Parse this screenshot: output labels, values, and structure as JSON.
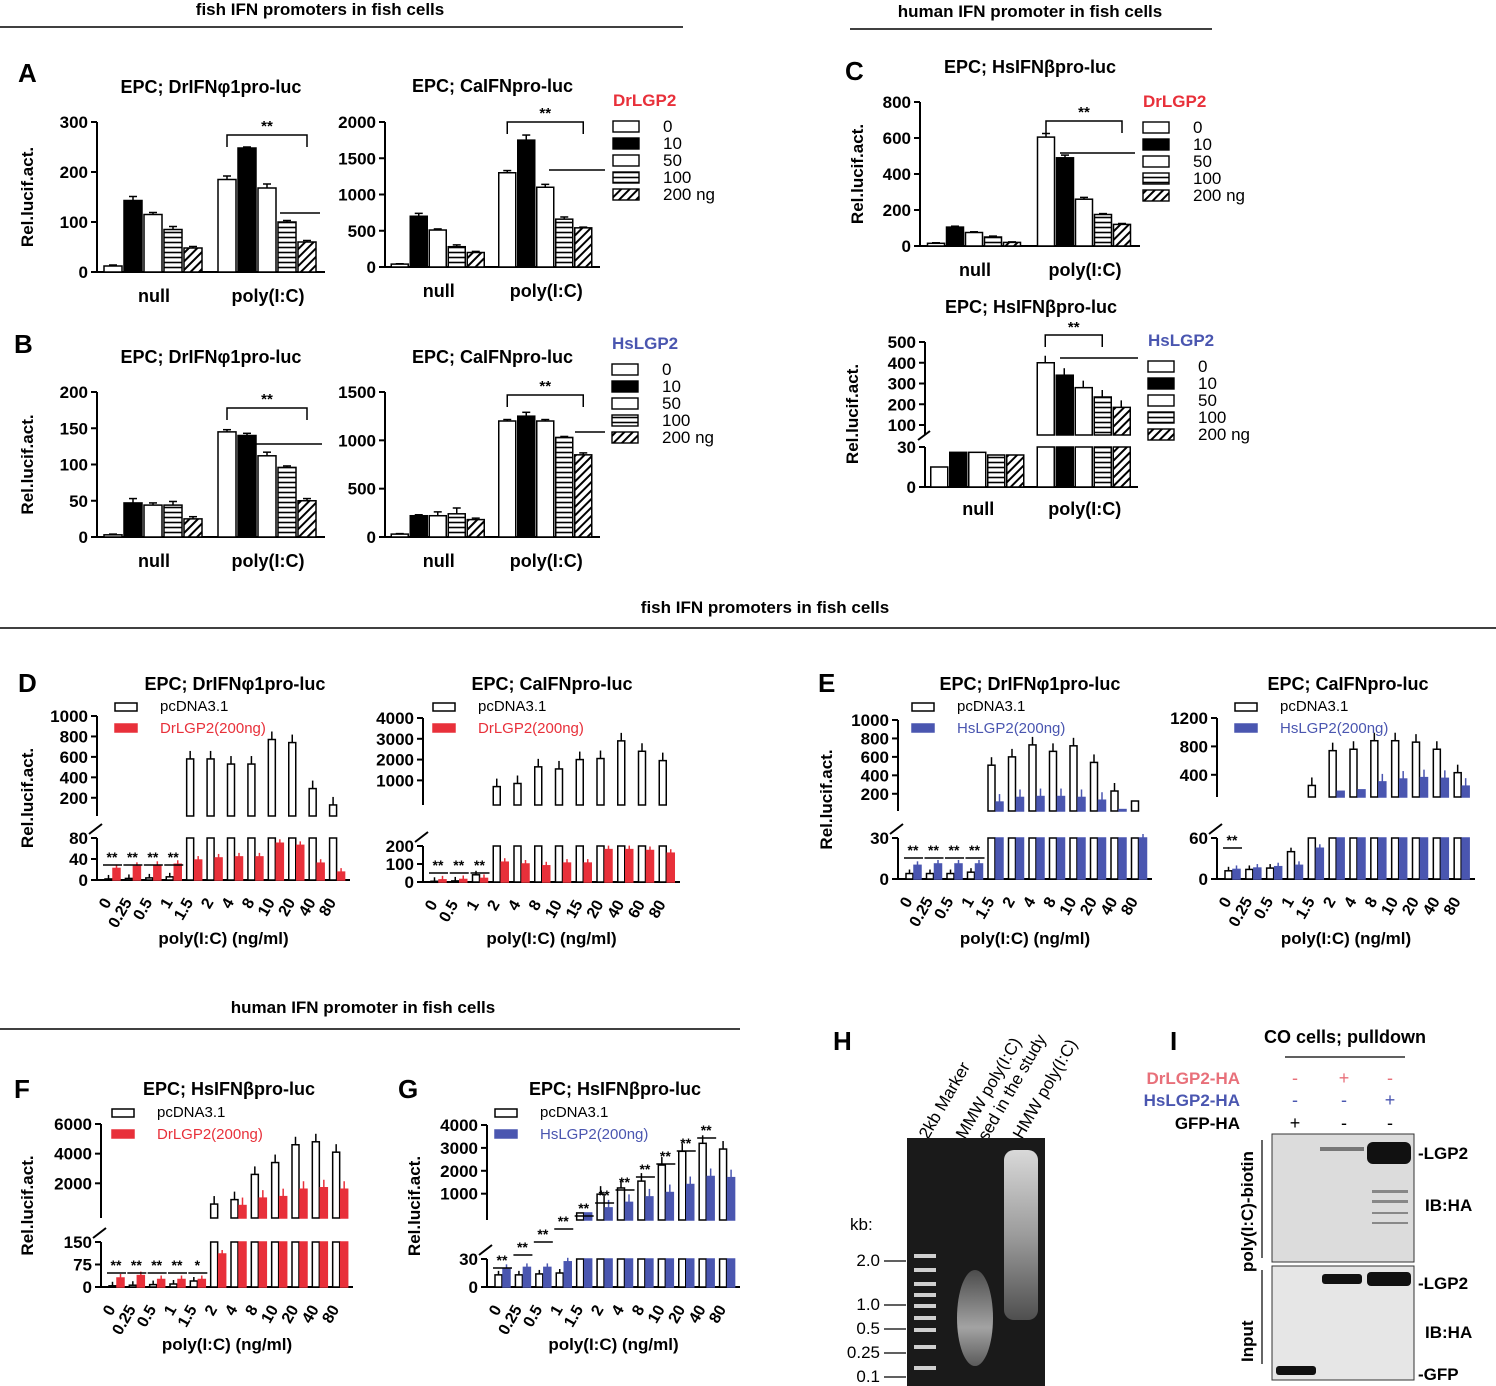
{
  "sections": {
    "top_left": "fish IFN promoters  in fish cells",
    "top_right": "human IFN promoter  in fish cells",
    "middle": "fish IFN promoters  in fish cells",
    "bottom": "human IFN promoter  in fish cells"
  },
  "panel_letters": {
    "A": "A",
    "B": "B",
    "C": "C",
    "D": "D",
    "E": "E",
    "F": "F",
    "G": "G",
    "H": "H",
    "I": "I"
  },
  "colors": {
    "red": "#e8303a",
    "blue": "#4a56b0",
    "black": "#000000"
  },
  "dose_legend": {
    "doses": [
      "0",
      "10",
      "50",
      "100",
      "200 ng"
    ],
    "red_title": "DrLGP2",
    "blue_title": "HsLGP2"
  },
  "common": {
    "ylabel": "Rel.lucif.act.",
    "xlabel": "poly(I:C) (ng/ml)",
    "sig": "**",
    "sig1": "*",
    "pcdna": "pcDNA3.1",
    "drlgp2": "DrLGP2(200ng)",
    "hslgp2": "HsLGP2(200ng)"
  },
  "chart_data": [
    {
      "id": "A1",
      "type": "bar",
      "title": "EPC; DrIFNφ1pro-luc",
      "ylabel": "Rel.lucif.act.",
      "ylim": [
        0,
        300
      ],
      "yticks": [
        "0",
        "100",
        "200",
        "300"
      ],
      "categories": [
        "null",
        "poly(I:C)"
      ],
      "series": [
        {
          "name": "0",
          "values": [
            12,
            185
          ]
        },
        {
          "name": "10",
          "values": [
            143,
            248
          ]
        },
        {
          "name": "50",
          "values": [
            115,
            168
          ]
        },
        {
          "name": "100",
          "values": [
            85,
            100
          ]
        },
        {
          "name": "200 ng",
          "values": [
            48,
            60
          ]
        }
      ],
      "errors": [
        [
          2,
          7
        ],
        [
          8,
          2
        ],
        [
          4,
          8
        ],
        [
          6,
          3
        ],
        [
          3,
          3
        ]
      ],
      "annotation": "**"
    },
    {
      "id": "A2",
      "type": "bar",
      "title": "EPC; CaIFNpro-luc",
      "ylabel": "",
      "ylim": [
        0,
        2000
      ],
      "yticks": [
        "0",
        "500",
        "1000",
        "1500",
        "2000"
      ],
      "categories": [
        "null",
        "poly(I:C)"
      ],
      "legend_title": "DrLGP2",
      "series": [
        {
          "name": "0",
          "values": [
            40,
            1300
          ]
        },
        {
          "name": "10",
          "values": [
            700,
            1750
          ]
        },
        {
          "name": "50",
          "values": [
            510,
            1100
          ]
        },
        {
          "name": "100",
          "values": [
            280,
            660
          ]
        },
        {
          "name": "200 ng",
          "values": [
            200,
            540
          ]
        }
      ],
      "errors": [
        [
          5,
          30
        ],
        [
          40,
          70
        ],
        [
          15,
          40
        ],
        [
          25,
          30
        ],
        [
          15,
          10
        ]
      ],
      "annotation": "**"
    },
    {
      "id": "B1",
      "type": "bar",
      "title": "EPC; DrIFNφ1pro-luc",
      "ylabel": "Rel.lucif.act.",
      "ylim": [
        0,
        200
      ],
      "yticks": [
        "0",
        "50",
        "100",
        "150",
        "200"
      ],
      "categories": [
        "null",
        "poly(I:C)"
      ],
      "series": [
        {
          "name": "0",
          "values": [
            3,
            145
          ]
        },
        {
          "name": "10",
          "values": [
            47,
            140
          ]
        },
        {
          "name": "50",
          "values": [
            44,
            112
          ]
        },
        {
          "name": "100",
          "values": [
            44,
            96
          ]
        },
        {
          "name": "200 ng",
          "values": [
            25,
            50
          ]
        }
      ],
      "errors": [
        [
          1,
          3
        ],
        [
          6,
          3
        ],
        [
          3,
          5
        ],
        [
          5,
          2
        ],
        [
          3,
          3
        ]
      ],
      "annotation": "**"
    },
    {
      "id": "B2",
      "type": "bar",
      "title": "EPC; CaIFNpro-luc",
      "ylabel": "",
      "ylim": [
        0,
        1500
      ],
      "yticks": [
        "0",
        "500",
        "1000",
        "1500"
      ],
      "categories": [
        "null",
        "poly(I:C)"
      ],
      "legend_title": "HsLGP2",
      "series": [
        {
          "name": "0",
          "values": [
            30,
            1200
          ]
        },
        {
          "name": "10",
          "values": [
            220,
            1250
          ]
        },
        {
          "name": "50",
          "values": [
            220,
            1200
          ]
        },
        {
          "name": "100",
          "values": [
            240,
            1030
          ]
        },
        {
          "name": "200 ng",
          "values": [
            180,
            850
          ]
        }
      ],
      "errors": [
        [
          5,
          15
        ],
        [
          10,
          40
        ],
        [
          40,
          15
        ],
        [
          60,
          10
        ],
        [
          15,
          20
        ]
      ],
      "annotation": "**"
    },
    {
      "id": "C1",
      "type": "bar",
      "title": "EPC; HsIFNβpro-luc",
      "ylabel": "Rel.lucif.act.",
      "ylim": [
        0,
        800
      ],
      "yticks": [
        "0",
        "200",
        "400",
        "600",
        "800"
      ],
      "categories": [
        "null",
        "poly(I:C)"
      ],
      "legend_title": "DrLGP2",
      "series": [
        {
          "name": "0",
          "values": [
            15,
            605
          ]
        },
        {
          "name": "10",
          "values": [
            105,
            490
          ]
        },
        {
          "name": "50",
          "values": [
            75,
            260
          ]
        },
        {
          "name": "100",
          "values": [
            50,
            175
          ]
        },
        {
          "name": "200 ng",
          "values": [
            20,
            120
          ]
        }
      ],
      "errors": [
        [
          3,
          20
        ],
        [
          5,
          15
        ],
        [
          4,
          10
        ],
        [
          5,
          5
        ],
        [
          3,
          5
        ]
      ],
      "annotation": "**"
    },
    {
      "id": "C2",
      "type": "bar",
      "title": "EPC; HsIFNβpro-luc",
      "ylabel": "Rel.lucif.act.",
      "ylim": [
        0,
        500
      ],
      "yticks": [
        "0",
        "30",
        "100",
        "200",
        "300",
        "400",
        "500"
      ],
      "categories": [
        "null",
        "poly(I:C)"
      ],
      "legend_title": "HsLGP2",
      "series": [
        {
          "name": "0",
          "values": [
            15,
            400
          ]
        },
        {
          "name": "10",
          "values": [
            26,
            340
          ]
        },
        {
          "name": "50",
          "values": [
            26,
            280
          ]
        },
        {
          "name": "100",
          "values": [
            24,
            235
          ]
        },
        {
          "name": "200 ng",
          "values": [
            24,
            185
          ]
        }
      ],
      "errors": [
        [
          1,
          10
        ],
        [
          1,
          8
        ],
        [
          1,
          5
        ],
        [
          1,
          4
        ],
        [
          1,
          4
        ]
      ],
      "annotation": "**"
    },
    {
      "id": "D1",
      "type": "bar",
      "title": "EPC; DrIFNφ1pro-luc",
      "ylabel": "Rel.lucif.act.",
      "xlabel": "poly(I:C) (ng/ml)",
      "x": [
        "0",
        "0.25",
        "0.5",
        "1",
        "1.5",
        "2",
        "4",
        "8",
        "10",
        "20",
        "40",
        "80"
      ],
      "yticks_low": [
        "0",
        "40",
        "80"
      ],
      "yticks_high": [
        "200",
        "400",
        "600",
        "800",
        "1000"
      ],
      "series": [
        {
          "name": "pcDNA3.1",
          "values": [
            2,
            3,
            4,
            6,
            580,
            580,
            530,
            530,
            770,
            740,
            290,
            130
          ]
        },
        {
          "name": "DrLGP2(200ng)",
          "values": [
            22,
            26,
            28,
            30,
            38,
            42,
            44,
            44,
            70,
            66,
            32,
            15
          ]
        }
      ],
      "sig": [
        "**",
        "**",
        "**",
        "**"
      ]
    },
    {
      "id": "D2",
      "type": "bar",
      "title": "EPC; CaIFNpro-luc",
      "ylabel": "",
      "xlabel": "poly(I:C) (ng/ml)",
      "x": [
        "0",
        "0.5",
        "1",
        "2",
        "4",
        "8",
        "10",
        "15",
        "20",
        "40",
        "60",
        "80"
      ],
      "yticks_low": [
        "0",
        "100",
        "200"
      ],
      "yticks_high": [
        "1000",
        "2000",
        "3000",
        "4000"
      ],
      "series": [
        {
          "name": "pcDNA3.1",
          "values": [
            4,
            6,
            40,
            700,
            850,
            1650,
            1550,
            2000,
            2050,
            2900,
            2400,
            1950
          ]
        },
        {
          "name": "DrLGP2(200ng)",
          "values": [
            12,
            14,
            20,
            110,
            100,
            90,
            105,
            105,
            180,
            180,
            175,
            160
          ]
        }
      ],
      "sig": [
        "**",
        "**",
        "**"
      ]
    },
    {
      "id": "E1",
      "type": "bar",
      "title": "EPC; DrIFNφ1pro-luc",
      "ylabel": "Rel.lucif.act.",
      "xlabel": "poly(I:C) (ng/ml)",
      "x": [
        "0",
        "0.25",
        "0.5",
        "1",
        "1.5",
        "2",
        "4",
        "8",
        "10",
        "20",
        "40",
        "80"
      ],
      "yticks_low": [
        "0",
        "30"
      ],
      "yticks_high": [
        "200",
        "400",
        "600",
        "800",
        "1000"
      ],
      "series": [
        {
          "name": "pcDNA3.1",
          "values": [
            4,
            4,
            4,
            5,
            510,
            600,
            730,
            660,
            720,
            540,
            230,
            100
          ]
        },
        {
          "name": "HsLGP2(200ng)",
          "values": [
            10,
            11,
            11,
            11,
            110,
            160,
            170,
            170,
            160,
            130,
            40,
            30
          ]
        }
      ],
      "sig": [
        "**",
        "**",
        "**",
        "**"
      ]
    },
    {
      "id": "E2",
      "type": "bar",
      "title": "EPC; CaIFNpro-luc",
      "ylabel": "",
      "xlabel": "poly(I:C) (ng/ml)",
      "x": [
        "0",
        "0.25",
        "0.5",
        "1",
        "1.5",
        "2",
        "4",
        "8",
        "10",
        "20",
        "40",
        "80"
      ],
      "yticks_low": [
        "0",
        "60"
      ],
      "yticks_high": [
        "400",
        "800",
        "1200"
      ],
      "series": [
        {
          "name": "pcDNA3.1",
          "values": [
            12,
            14,
            16,
            40,
            250,
            740,
            760,
            880,
            880,
            860,
            760,
            430
          ]
        },
        {
          "name": "HsLGP2(200ng)",
          "values": [
            14,
            16,
            18,
            20,
            45,
            140,
            160,
            300,
            340,
            360,
            350,
            240
          ]
        }
      ],
      "sig": [
        "**"
      ]
    },
    {
      "id": "F",
      "type": "bar",
      "title": "EPC; HsIFNβpro-luc",
      "ylabel": "Rel.lucif.act.",
      "xlabel": "poly(I:C) (ng/ml)",
      "x": [
        "0",
        "0.25",
        "0.5",
        "1",
        "1.5",
        "2",
        "4",
        "8",
        "10",
        "20",
        "40",
        "80"
      ],
      "yticks_low": [
        "0",
        "75",
        "150"
      ],
      "yticks_high": [
        "2000",
        "4000",
        "6000"
      ],
      "series": [
        {
          "name": "pcDNA3.1",
          "values": [
            4,
            6,
            8,
            10,
            20,
            600,
            900,
            2600,
            3400,
            4600,
            4800,
            4100
          ]
        },
        {
          "name": "DrLGP2(200ng)",
          "values": [
            30,
            38,
            25,
            25,
            25,
            110,
            500,
            1000,
            1100,
            1600,
            1700,
            1600
          ]
        }
      ],
      "sig": [
        "**",
        "**",
        "**",
        "**",
        "*"
      ]
    },
    {
      "id": "G",
      "type": "bar",
      "title": "EPC; HsIFNβpro-luc",
      "ylabel": "Rel.lucif.act.",
      "xlabel": "poly(I:C) (ng/ml)",
      "x": [
        "0",
        "0.25",
        "0.5",
        "1",
        "1.5",
        "2",
        "4",
        "8",
        "10",
        "20",
        "40",
        "80"
      ],
      "yticks_low": [
        "0",
        "30"
      ],
      "yticks_high": [
        "1000",
        "2000",
        "3000",
        "4000"
      ],
      "series": [
        {
          "name": "pcDNA3.1",
          "values": [
            13,
            13,
            14,
            15,
            150,
            980,
            1250,
            1550,
            2250,
            2850,
            3200,
            2950
          ]
        },
        {
          "name": "HsLGP2(200ng)",
          "values": [
            20,
            21,
            21,
            27,
            150,
            380,
            620,
            860,
            1050,
            1400,
            1750,
            1700
          ]
        }
      ],
      "sig": [
        "**",
        "**",
        "**",
        "**",
        "**",
        "**",
        "**",
        "**",
        "**",
        "**",
        "**"
      ]
    }
  ],
  "gel": {
    "lanes": [
      "2kb Marker",
      "MMW poly(I:C)\nused in the study",
      "HMW poly(I:C)"
    ],
    "kb_label": "kb:",
    "kb_marks": [
      "2.0",
      "1.0",
      "0.5",
      "0.25",
      "0.1"
    ]
  },
  "blot": {
    "title": "CO cells; pulldown",
    "rows": [
      {
        "label": "DrLGP2-HA",
        "signs": [
          "-",
          "+",
          "-"
        ]
      },
      {
        "label": "HsLGP2-HA",
        "signs": [
          "-",
          "-",
          "+"
        ]
      },
      {
        "label": "GFP-HA",
        "signs": [
          "+",
          "-",
          "-"
        ]
      }
    ],
    "pulldown_label": "poly(I:C)-biotin",
    "input_label": "Input",
    "band_lgp2": "-LGP2",
    "band_gfp": "-GFP",
    "ib": "IB:HA"
  }
}
